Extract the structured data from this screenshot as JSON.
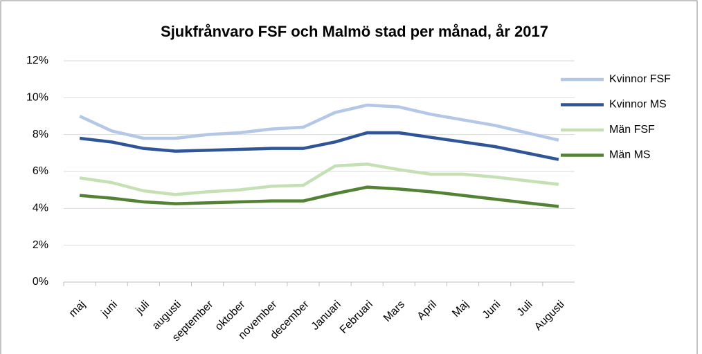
{
  "chart_data": {
    "type": "line",
    "title": "Sjukfrånvaro FSF och Malmö stad  per månad, år 2017",
    "categories": [
      "maj",
      "juni",
      "juli",
      "augusti",
      "september",
      "oktober",
      "november",
      "december",
      "Januari",
      "Februari",
      "Mars",
      "April",
      "Maj",
      "Juni",
      "Juli",
      "Augusti"
    ],
    "series": [
      {
        "name": "Kvinnor FSF",
        "color": "#b4c7e7",
        "values": [
          9.0,
          8.2,
          7.8,
          7.8,
          8.0,
          8.1,
          8.3,
          8.4,
          9.2,
          9.6,
          9.5,
          9.1,
          8.8,
          8.5,
          8.1,
          7.7
        ]
      },
      {
        "name": "Kvinnor MS",
        "color": "#2f5597",
        "values": [
          7.8,
          7.6,
          7.25,
          7.1,
          7.15,
          7.2,
          7.25,
          7.25,
          7.6,
          8.1,
          8.1,
          7.85,
          7.6,
          7.35,
          7.0,
          6.65
        ]
      },
      {
        "name": "Män FSF",
        "color": "#c5e0b4",
        "values": [
          5.65,
          5.4,
          4.95,
          4.75,
          4.9,
          5.0,
          5.2,
          5.25,
          6.3,
          6.4,
          6.1,
          5.85,
          5.85,
          5.7,
          5.5,
          5.3
        ]
      },
      {
        "name": "Män MS",
        "color": "#548235",
        "values": [
          4.7,
          4.55,
          4.35,
          4.25,
          4.3,
          4.35,
          4.4,
          4.4,
          4.8,
          5.15,
          5.05,
          4.9,
          4.7,
          4.5,
          4.3,
          4.1
        ]
      }
    ],
    "ylim": [
      0,
      12
    ],
    "yticks": [
      {
        "value": 0,
        "label": "0%"
      },
      {
        "value": 2,
        "label": "2%"
      },
      {
        "value": 4,
        "label": "4%"
      },
      {
        "value": 6,
        "label": "6%"
      },
      {
        "value": 8,
        "label": "8%"
      },
      {
        "value": 10,
        "label": "10%"
      },
      {
        "value": 12,
        "label": "12%"
      }
    ],
    "grid": true,
    "legend": "right"
  }
}
